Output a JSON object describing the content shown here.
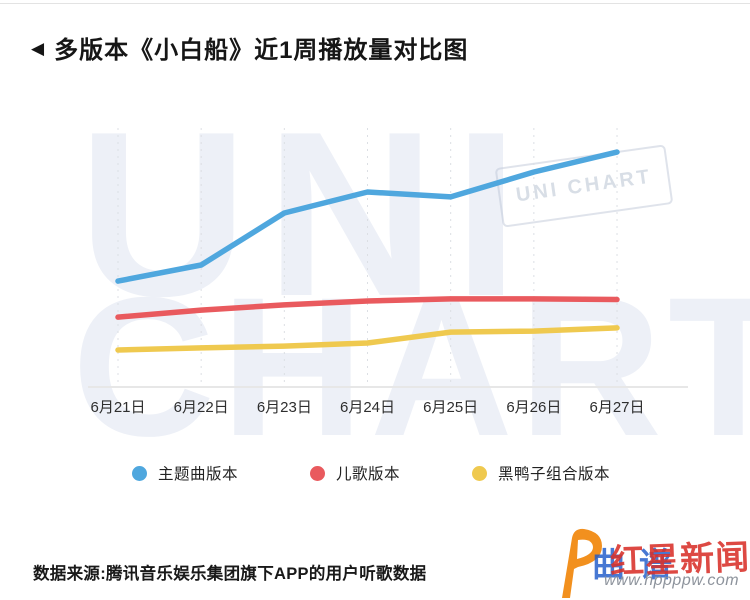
{
  "header": {
    "marker_icon": "◀",
    "title": "多版本《小白船》近1周播放量对比图"
  },
  "chart_data": {
    "type": "line",
    "categories": [
      "6月21日",
      "6月22日",
      "6月23日",
      "6月24日",
      "6月25日",
      "6月26日",
      "6月27日"
    ],
    "series": [
      {
        "name": "主题曲版本",
        "color": "#4FA7DE",
        "values": [
          40.9,
          47.1,
          67.2,
          75.3,
          73.4,
          83.0,
          90.7
        ]
      },
      {
        "name": "儿歌版本",
        "color": "#E95A5E",
        "values": [
          27.0,
          29.7,
          31.7,
          33.2,
          34.0,
          34.0,
          33.8
        ]
      },
      {
        "name": "黑鸭子组合版本",
        "color": "#EFC94F",
        "values": [
          14.3,
          15.1,
          15.8,
          17.0,
          21.2,
          21.6,
          22.8
        ]
      }
    ],
    "title": "多版本《小白船》近1周播放量对比图",
    "xlabel": "",
    "ylabel": "",
    "ylim": [
      0,
      100
    ],
    "grid": "vertical-dashed",
    "legend_position": "bottom"
  },
  "background_watermark": {
    "line1": "UNI",
    "line2": "CHART",
    "stamp": "UNI CHART"
  },
  "footer": {
    "source": "数据来源:腾讯音乐娱乐集团旗下APP的用户听歌数据"
  },
  "logo": {
    "blue_text": "曲谱",
    "red_text": "红星新闻",
    "url": "www.hppppw.com"
  }
}
